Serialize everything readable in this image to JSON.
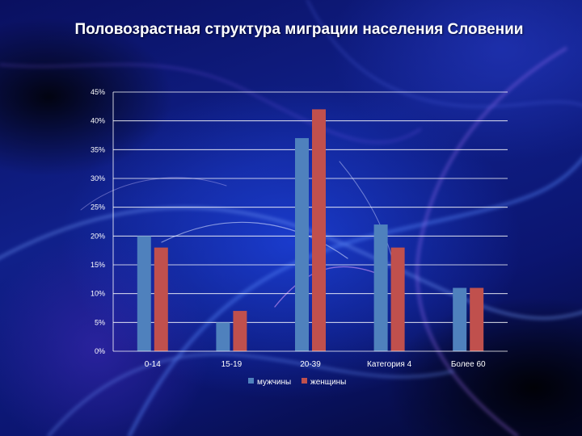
{
  "title": "Половозрастная структура миграции населения Словении",
  "colors": {
    "men": "#4f81bd",
    "women": "#c0504d",
    "grid": "#ffffff",
    "text": "#ffffff"
  },
  "chart_data": {
    "type": "bar",
    "title": "Половозрастная структура миграции населения Словении",
    "categories": [
      "0-14",
      "15-19",
      "20-39",
      "Категория 4",
      "Более 60"
    ],
    "series": [
      {
        "name": "мужчины",
        "values": [
          20,
          5,
          37,
          22,
          11
        ]
      },
      {
        "name": "женщины",
        "values": [
          18,
          7,
          42,
          18,
          11
        ]
      }
    ],
    "yticks": [
      "0%",
      "5%",
      "10%",
      "15%",
      "20%",
      "25%",
      "30%",
      "35%",
      "40%",
      "45%"
    ],
    "ylim": [
      0,
      45
    ],
    "grid": true,
    "legend": "bottom"
  }
}
